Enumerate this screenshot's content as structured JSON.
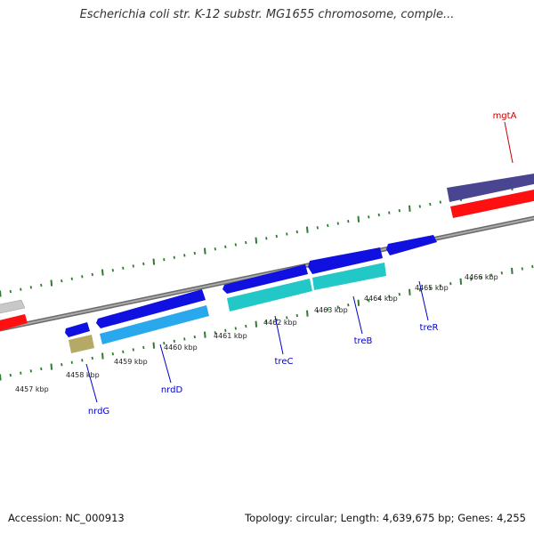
{
  "title": "Escherichia coli str. K-12 substr. MG1655 chromosome, comple...",
  "footer": {
    "accession": "Accession: NC_000913",
    "summary": "Topology: circular; Length: 4,639,675 bp; Genes: 4,255"
  },
  "colors": {
    "backbone": "#8a8a8a",
    "tick": "#2e7d2e",
    "label_forward": "#cc0000",
    "label_reverse": "#0000cc",
    "gene_blue": "#1010e0",
    "gene_cyan": "#22c7c7",
    "gene_skyblue": "#2aa8ee",
    "gene_navy": "#4a4590",
    "gene_red": "#ff1010",
    "gene_gray": "#c8c8c8",
    "gene_olive": "#b4aa66"
  },
  "scale": {
    "unit": "kbp",
    "labels": [
      "4457 kbp",
      "4458 kbp",
      "4459 kbp",
      "4460 kbp",
      "4461 kbp",
      "4462 kbp",
      "4463 kbp",
      "4464 kbp",
      "4465 kbp",
      "4466 kbp"
    ]
  },
  "genes": [
    {
      "name": "mgtA",
      "strand": "forward",
      "color": "gene_navy"
    },
    {
      "name": "nrdG",
      "strand": "reverse",
      "color": "gene_olive"
    },
    {
      "name": "nrdD",
      "strand": "reverse",
      "color": "gene_skyblue"
    },
    {
      "name": "treC",
      "strand": "reverse",
      "color": "gene_cyan"
    },
    {
      "name": "treB",
      "strand": "reverse",
      "color": "gene_cyan"
    },
    {
      "name": "treR",
      "strand": "reverse",
      "color": "gene_blue"
    }
  ]
}
